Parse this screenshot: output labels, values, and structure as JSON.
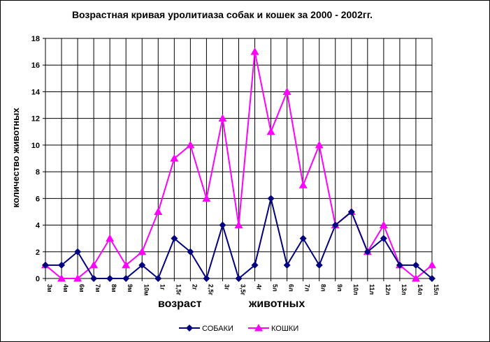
{
  "chart_data": {
    "type": "line",
    "title": "Возрастная кривая уролитиаза собак и кошек за 2000 - 2002гг.",
    "ylabel": "количество животных",
    "xlabel_parts": [
      "возраст",
      "животных"
    ],
    "ylim": [
      0,
      18
    ],
    "yticks": [
      0,
      2,
      4,
      6,
      8,
      10,
      12,
      14,
      16,
      18
    ],
    "categories": [
      "3м",
      "4м",
      "6м",
      "7м",
      "8м",
      "9м",
      "10м",
      "1г",
      "1,5г",
      "2г",
      "2,5г",
      "3г",
      "3,5г",
      "4г",
      "5л",
      "6л",
      "7л",
      "8л",
      "9л",
      "10л",
      "11л",
      "12л",
      "13л",
      "14л",
      "15л"
    ],
    "grid": true,
    "legend_position": "bottom",
    "series": [
      {
        "name": "СОБАКИ",
        "color": "#000080",
        "marker": "diamond",
        "values": [
          1,
          1,
          2,
          0,
          0,
          0,
          1,
          0,
          3,
          2,
          0,
          4,
          0,
          1,
          6,
          1,
          3,
          1,
          4,
          5,
          2,
          3,
          1,
          1,
          0
        ]
      },
      {
        "name": "КОШКИ",
        "color": "#ff00ff",
        "marker": "triangle",
        "values": [
          1,
          0,
          0,
          1,
          3,
          1,
          2,
          5,
          9,
          10,
          6,
          12,
          4,
          17,
          11,
          14,
          7,
          10,
          4,
          5,
          2,
          4,
          1,
          0,
          1
        ]
      }
    ]
  }
}
